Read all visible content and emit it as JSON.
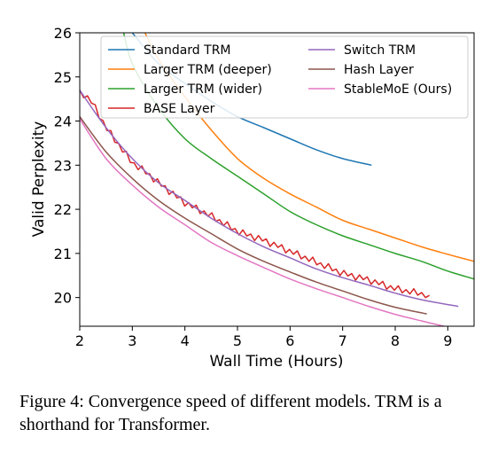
{
  "chart_data": {
    "type": "line",
    "title": "",
    "xlabel": "Wall Time (Hours)",
    "ylabel": "Valid Perplexity",
    "xlim": [
      2,
      9.5
    ],
    "ylim": [
      19.35,
      26
    ],
    "xticks": [
      2,
      3,
      4,
      5,
      6,
      7,
      8,
      9
    ],
    "yticks": [
      20,
      21,
      22,
      23,
      24,
      25,
      26
    ],
    "grid": false,
    "legend_position": "top-right",
    "legend_columns": 2,
    "series": [
      {
        "name": "Standard TRM",
        "color": "#1f77b4",
        "jitter": false,
        "x": [
          2.85,
          3.0,
          3.5,
          4.0,
          4.5,
          5.0,
          5.5,
          6.0,
          6.5,
          7.0,
          7.55
        ],
        "y": [
          26.2,
          26.0,
          25.3,
          24.85,
          24.45,
          24.1,
          23.85,
          23.6,
          23.35,
          23.15,
          23.0
        ]
      },
      {
        "name": "Larger TRM (deeper)",
        "color": "#ff7f0e",
        "jitter": false,
        "x": [
          3.2,
          3.5,
          4.0,
          4.5,
          5.0,
          5.5,
          6.0,
          6.5,
          7.0,
          7.5,
          8.0,
          8.5,
          9.0,
          9.5
        ],
        "y": [
          26.1,
          25.4,
          24.55,
          23.8,
          23.15,
          22.7,
          22.35,
          22.05,
          21.75,
          21.55,
          21.35,
          21.15,
          20.98,
          20.82
        ]
      },
      {
        "name": "Larger TRM (wider)",
        "color": "#2ca02c",
        "jitter": false,
        "x": [
          2.8,
          3.0,
          3.5,
          4.0,
          4.5,
          5.0,
          5.5,
          6.0,
          6.5,
          7.0,
          7.5,
          8.0,
          8.5,
          9.0,
          9.5
        ],
        "y": [
          26.2,
          25.3,
          24.3,
          23.6,
          23.15,
          22.75,
          22.35,
          21.95,
          21.65,
          21.4,
          21.2,
          21.0,
          20.82,
          20.6,
          20.42
        ]
      },
      {
        "name": "BASE Layer",
        "color": "#d62728",
        "jitter": true,
        "x": [
          2.0,
          2.25,
          2.5,
          2.75,
          3.0,
          3.25,
          3.5,
          4.0,
          4.5,
          5.0,
          5.5,
          6.0,
          6.5,
          7.0,
          7.5,
          8.0,
          8.65
        ],
        "y": [
          24.7,
          24.4,
          23.85,
          23.45,
          23.05,
          22.85,
          22.6,
          22.15,
          21.85,
          21.5,
          21.3,
          21.05,
          20.8,
          20.55,
          20.4,
          20.2,
          20.05
        ]
      },
      {
        "name": "Switch TRM",
        "color": "#9467bd",
        "jitter": false,
        "x": [
          2.0,
          2.5,
          3.0,
          3.5,
          4.0,
          4.5,
          5.0,
          5.5,
          6.0,
          6.5,
          7.0,
          7.5,
          8.0,
          8.5,
          9.2
        ],
        "y": [
          24.7,
          23.85,
          23.15,
          22.6,
          22.2,
          21.8,
          21.45,
          21.15,
          20.9,
          20.65,
          20.45,
          20.28,
          20.1,
          19.95,
          19.8
        ]
      },
      {
        "name": "Hash Layer",
        "color": "#8c564b",
        "jitter": false,
        "x": [
          2.0,
          2.5,
          3.0,
          3.5,
          4.0,
          4.5,
          5.0,
          5.5,
          6.0,
          6.5,
          7.0,
          7.5,
          8.0,
          8.6
        ],
        "y": [
          24.1,
          23.3,
          22.7,
          22.2,
          21.8,
          21.45,
          21.1,
          20.82,
          20.58,
          20.35,
          20.15,
          19.95,
          19.78,
          19.63
        ]
      },
      {
        "name": "StableMoE (Ours)",
        "color": "#e377c2",
        "jitter": false,
        "x": [
          2.0,
          2.5,
          3.0,
          3.5,
          4.0,
          4.5,
          5.0,
          5.5,
          6.0,
          6.5,
          7.0,
          7.5,
          8.0,
          8.5,
          9.0
        ],
        "y": [
          24.05,
          23.15,
          22.55,
          22.05,
          21.65,
          21.25,
          20.95,
          20.68,
          20.42,
          20.2,
          20.0,
          19.8,
          19.62,
          19.47,
          19.33
        ]
      }
    ]
  },
  "caption": {
    "label": "Figure 4:",
    "text": "Convergence speed of different models. TRM is a shorthand for Transformer."
  }
}
